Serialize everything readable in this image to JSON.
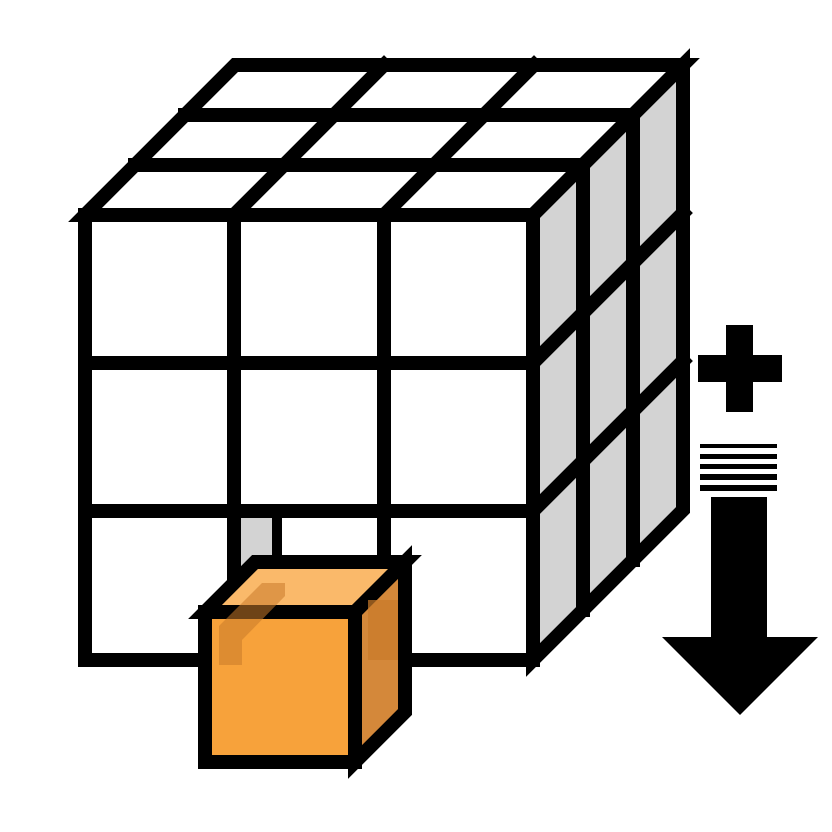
{
  "icon": {
    "name": "add-voxel-cube-icon",
    "parts": [
      "cube-grid-icon",
      "new-voxel-icon",
      "plus-icon",
      "down-arrow-icon"
    ]
  },
  "colors": {
    "outline": "#000000",
    "face_front": "#ffffff",
    "face_top": "#ffffff",
    "face_side": "#d3d3d3",
    "voxel_front": "#f7a23b",
    "voxel_top": "#fab96a",
    "voxel_side": "#d4883a",
    "voxel_shadow": "#c97a2a"
  },
  "grid": {
    "rows": 3,
    "cols": 3,
    "layers": 3,
    "missing_front_cell": [
      2,
      1
    ]
  }
}
